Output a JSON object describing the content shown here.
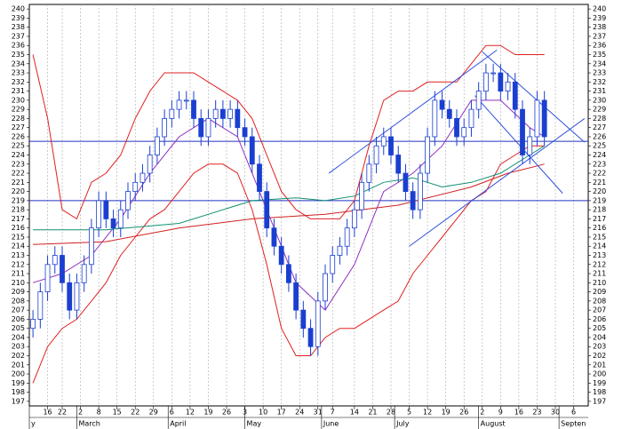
{
  "chart_data": {
    "type": "candlestick",
    "xlim": [
      -1,
      152
    ],
    "ylim": [
      196.5,
      240.5
    ],
    "yticks": [
      197,
      198,
      199,
      200,
      201,
      202,
      203,
      204,
      205,
      206,
      207,
      208,
      209,
      210,
      211,
      212,
      213,
      214,
      215,
      216,
      217,
      218,
      219,
      220,
      221,
      222,
      223,
      224,
      225,
      226,
      227,
      228,
      229,
      230,
      231,
      232,
      233,
      234,
      235,
      236,
      237,
      238,
      239,
      240
    ],
    "xticks": [
      {
        "value": 4,
        "label": "16"
      },
      {
        "value": 8,
        "label": "22"
      },
      {
        "value": 13,
        "label": "2"
      },
      {
        "value": 18,
        "label": "8"
      },
      {
        "value": 23,
        "label": "15"
      },
      {
        "value": 28,
        "label": "22"
      },
      {
        "value": 33,
        "label": "29"
      },
      {
        "value": 38,
        "label": "6"
      },
      {
        "value": 43,
        "label": "12"
      },
      {
        "value": 48,
        "label": "19"
      },
      {
        "value": 53,
        "label": "26"
      },
      {
        "value": 58,
        "label": "3"
      },
      {
        "value": 63,
        "label": "10"
      },
      {
        "value": 68,
        "label": "17"
      },
      {
        "value": 73,
        "label": "24"
      },
      {
        "value": 78,
        "label": "31"
      },
      {
        "value": 82,
        "label": "7"
      },
      {
        "value": 88,
        "label": "14"
      },
      {
        "value": 93,
        "label": "21"
      },
      {
        "value": 98,
        "label": "28"
      },
      {
        "value": 103,
        "label": "5"
      },
      {
        "value": 108,
        "label": "12"
      },
      {
        "value": 113,
        "label": "19"
      },
      {
        "value": 118,
        "label": "26"
      },
      {
        "value": 123,
        "label": "2"
      },
      {
        "value": 128,
        "label": "9"
      },
      {
        "value": 133,
        "label": "16"
      },
      {
        "value": 138,
        "label": "23"
      },
      {
        "value": 143,
        "label": "30"
      },
      {
        "value": 148,
        "label": "6"
      }
    ],
    "months": [
      {
        "value": -1,
        "label": "y"
      },
      {
        "value": 12,
        "label": "March"
      },
      {
        "value": 37,
        "label": "April"
      },
      {
        "value": 58,
        "label": "May"
      },
      {
        "value": 79,
        "label": "June"
      },
      {
        "value": 99,
        "label": "July"
      },
      {
        "value": 122,
        "label": "August"
      },
      {
        "value": 144,
        "label": "Septen"
      }
    ],
    "grid": true,
    "up_color": "#ffffff",
    "down_color": "#1a3fd0",
    "candle_edge": "#1a3fd0",
    "candles": {
      "x": [
        0,
        2,
        4,
        6,
        8,
        10,
        12,
        14,
        16,
        18,
        20,
        22,
        24,
        26,
        28,
        30,
        32,
        34,
        36,
        38,
        40,
        42,
        44,
        46,
        48,
        50,
        52,
        54,
        56,
        58,
        60,
        62,
        64,
        66,
        68,
        70,
        72,
        74,
        76,
        78,
        80,
        82,
        84,
        86,
        88,
        90,
        92,
        94,
        96,
        98,
        100,
        102,
        104,
        106,
        108,
        110,
        112,
        114,
        116,
        118,
        120,
        122,
        124,
        126,
        128,
        130,
        132,
        134,
        136,
        138,
        140
      ],
      "open": [
        205,
        206,
        209,
        212,
        213,
        210,
        207,
        210,
        212,
        216,
        219,
        217,
        216,
        218,
        220,
        221,
        222,
        224,
        226,
        228,
        229,
        230,
        230,
        228,
        226,
        228,
        229,
        228,
        229,
        227,
        226,
        223,
        220,
        216,
        214,
        212,
        210,
        207,
        205,
        203,
        208,
        211,
        213,
        214,
        216,
        218,
        221,
        223,
        225,
        226,
        224,
        222,
        220,
        218,
        222,
        226,
        230,
        229,
        228,
        226,
        227,
        229,
        231,
        233,
        233,
        231,
        232,
        229,
        224,
        226,
        230
      ],
      "high": [
        207,
        210,
        213,
        214,
        214,
        211,
        211,
        213,
        217,
        220,
        220,
        218,
        219,
        221,
        222,
        223,
        225,
        227,
        229,
        230,
        231,
        231,
        231,
        229,
        229,
        230,
        230,
        230,
        230,
        228,
        227,
        224,
        221,
        217,
        215,
        213,
        211,
        208,
        206,
        209,
        212,
        214,
        215,
        217,
        219,
        222,
        224,
        226,
        227,
        227,
        225,
        223,
        221,
        223,
        227,
        231,
        231,
        230,
        229,
        228,
        230,
        232,
        234,
        234,
        234,
        233,
        233,
        230,
        227,
        231,
        231
      ],
      "low": [
        204,
        205,
        208,
        211,
        209,
        206,
        206,
        209,
        211,
        215,
        216,
        215,
        215,
        217,
        219,
        220,
        221,
        223,
        225,
        227,
        228,
        229,
        227,
        225,
        225,
        227,
        227,
        227,
        226,
        225,
        222,
        219,
        215,
        213,
        211,
        209,
        206,
        204,
        202,
        202,
        207,
        210,
        212,
        213,
        215,
        217,
        220,
        222,
        224,
        223,
        221,
        219,
        217,
        217,
        221,
        225,
        228,
        227,
        225,
        225,
        226,
        228,
        230,
        232,
        230,
        230,
        228,
        223,
        223,
        225,
        225
      ],
      "close": [
        206,
        209,
        212,
        213,
        210,
        207,
        210,
        212,
        216,
        219,
        217,
        216,
        218,
        220,
        221,
        222,
        224,
        226,
        228,
        229,
        230,
        230,
        228,
        226,
        228,
        229,
        228,
        229,
        227,
        226,
        223,
        220,
        216,
        214,
        212,
        210,
        207,
        205,
        203,
        208,
        211,
        213,
        214,
        216,
        218,
        221,
        223,
        225,
        226,
        224,
        222,
        220,
        218,
        222,
        226,
        230,
        229,
        228,
        226,
        227,
        229,
        231,
        233,
        233,
        231,
        232,
        229,
        224,
        226,
        230,
        226
      ]
    },
    "lines": [
      {
        "color": "#e02020",
        "x": [
          0,
          4,
          8,
          12,
          16,
          20,
          24,
          28,
          32,
          36,
          40,
          44,
          48,
          52,
          56,
          60,
          64,
          68,
          72,
          76,
          80,
          84,
          88,
          92,
          96,
          100,
          104,
          108,
          112,
          116,
          120,
          124,
          128,
          132,
          136,
          140
        ],
        "values": [
          235,
          228,
          218,
          217,
          221,
          222,
          224,
          228,
          231,
          233,
          233,
          233,
          232,
          231,
          230,
          228,
          224,
          220,
          218,
          217,
          217,
          217,
          219,
          225,
          230,
          231,
          231,
          232,
          232,
          232,
          234,
          236,
          236,
          235,
          235,
          235
        ]
      },
      {
        "color": "#e02020",
        "x": [
          0,
          4,
          8,
          12,
          16,
          20,
          24,
          28,
          32,
          36,
          40,
          44,
          48,
          52,
          56,
          60,
          64,
          68,
          72,
          76,
          80,
          84,
          88,
          92,
          96,
          100,
          104,
          108,
          112,
          116,
          120,
          124,
          128,
          132,
          136,
          140
        ],
        "values": [
          199,
          203,
          205,
          206,
          208,
          210,
          213,
          215,
          217,
          218,
          220,
          222,
          223,
          223,
          222,
          218,
          212,
          205,
          202,
          202,
          204,
          205,
          205,
          206,
          207,
          208,
          211,
          213,
          215,
          217,
          219,
          220,
          223,
          224,
          225,
          225
        ]
      },
      {
        "color": "#9030c0",
        "x": [
          0,
          8,
          16,
          24,
          32,
          40,
          48,
          56,
          64,
          72,
          80,
          88,
          96,
          104,
          112,
          120,
          128,
          136,
          140
        ],
        "values": [
          210,
          211,
          213,
          217,
          222,
          226,
          228,
          226,
          218,
          210,
          207,
          212,
          220,
          222,
          225,
          230,
          230,
          227,
          226
        ]
      },
      {
        "color": "#109070",
        "x": [
          0,
          20,
          40,
          60,
          72,
          80,
          88,
          96,
          104,
          112,
          120,
          128,
          136,
          140
        ],
        "values": [
          215.8,
          215.8,
          216.5,
          219,
          219.3,
          219,
          219.5,
          221,
          221.5,
          220.5,
          221,
          222,
          224,
          225
        ]
      },
      {
        "color": "#d02020",
        "x": [
          0,
          20,
          40,
          60,
          80,
          100,
          120,
          130,
          140
        ],
        "values": [
          214.2,
          214.5,
          216,
          217,
          217.5,
          218.5,
          220.5,
          222,
          223
        ]
      }
    ],
    "hlines": [
      225.5,
      219
    ],
    "hline_color": "#2030c0",
    "trendlines": [
      [
        81,
        222,
        127,
        235.5
      ],
      [
        103,
        214,
        151,
        228
      ],
      [
        123,
        235.3,
        151,
        225.4
      ],
      [
        121,
        230.5,
        145,
        219.8
      ]
    ],
    "trend_color": "#3050e0"
  }
}
